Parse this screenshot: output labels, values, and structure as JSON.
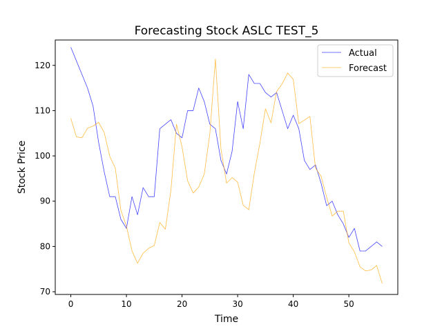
{
  "chart_data": {
    "type": "line",
    "title": "Forecasting Stock ASLC TEST_5",
    "xlabel": "Time",
    "ylabel": "Stock Price",
    "xlim": [
      -2.8,
      58.8
    ],
    "ylim": [
      69.4,
      125.6
    ],
    "xticks": [
      0,
      10,
      20,
      30,
      40,
      50
    ],
    "yticks": [
      70,
      80,
      90,
      100,
      110,
      120
    ],
    "grid": false,
    "legend_position": "top-right",
    "series": [
      {
        "name": "Actual",
        "color": "#0000ff",
        "x": [
          0,
          1,
          2,
          3,
          4,
          5,
          6,
          7,
          8,
          9,
          10,
          11,
          12,
          13,
          14,
          15,
          16,
          17,
          18,
          19,
          20,
          21,
          22,
          23,
          24,
          25,
          26,
          27,
          28,
          29,
          30,
          31,
          32,
          33,
          34,
          35,
          36,
          37,
          38,
          39,
          40,
          41,
          42,
          43,
          44,
          45,
          46,
          47,
          48,
          49,
          50,
          51,
          52,
          53,
          54,
          55,
          56
        ],
        "values": [
          124,
          121,
          118,
          115,
          111,
          103,
          96.5,
          91,
          91,
          86,
          84,
          91,
          87,
          93,
          91,
          91,
          106,
          107,
          108,
          105,
          104,
          110,
          110,
          115,
          112,
          107,
          106,
          99,
          96,
          101,
          112,
          106,
          118,
          116,
          116,
          114,
          113,
          114,
          110,
          106,
          109,
          106,
          99,
          97,
          98,
          94,
          89,
          90,
          87,
          85,
          82,
          84,
          79,
          79,
          80,
          81,
          80
        ]
      },
      {
        "name": "Forecast",
        "color": "#ffa500",
        "x": [
          0,
          1,
          2,
          3,
          4,
          5,
          6,
          7,
          8,
          9,
          10,
          11,
          12,
          13,
          14,
          15,
          16,
          17,
          18,
          19,
          20,
          21,
          22,
          23,
          24,
          25,
          26,
          27,
          28,
          29,
          30,
          31,
          32,
          33,
          34,
          35,
          36,
          37,
          38,
          39,
          40,
          41,
          42,
          43,
          44,
          45,
          46,
          47,
          48,
          49,
          50,
          51,
          52,
          53,
          54,
          55,
          56
        ],
        "values": [
          108.3,
          104.2,
          104.0,
          106.1,
          106.6,
          107.4,
          105.2,
          99.9,
          97.3,
          88.0,
          84.5,
          79.0,
          76.3,
          78.5,
          79.6,
          80.2,
          85.3,
          83.8,
          92.4,
          107.0,
          102.0,
          94.5,
          91.8,
          93.1,
          96.0,
          104.9,
          121.4,
          101.5,
          94.0,
          95.2,
          94.2,
          89.1,
          88.1,
          96.2,
          102.8,
          110.4,
          107.3,
          114.2,
          115.9,
          118.3,
          116.9,
          107.1,
          107.9,
          108.7,
          97.3,
          95.5,
          90.9,
          86.7,
          87.8,
          87.8,
          80.8,
          78.8,
          75.5,
          74.6,
          74.8,
          75.8,
          71.8
        ]
      }
    ]
  }
}
